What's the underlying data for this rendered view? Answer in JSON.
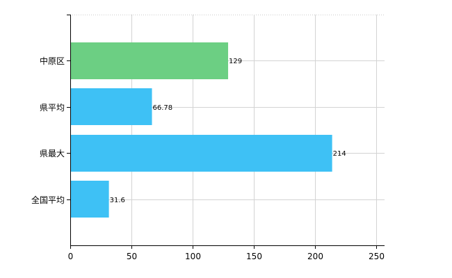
{
  "chart_data": {
    "type": "bar",
    "orientation": "horizontal",
    "categories": [
      "中原区",
      "県平均",
      "県最大",
      "全国平均"
    ],
    "values": [
      129,
      66.78,
      214,
      31.6
    ],
    "data_labels": [
      "129",
      "66.78",
      "214",
      "31.6"
    ],
    "bar_colors": [
      "#6ccf83",
      "#3ec1f5",
      "#3ec1f5",
      "#3ec1f5"
    ],
    "xlim": [
      0,
      250
    ],
    "x_ticks": [
      0,
      50,
      100,
      150,
      200,
      250
    ],
    "x_tick_labels": [
      "0",
      "50",
      "100",
      "150",
      "200",
      "250"
    ],
    "grid": true,
    "title": "",
    "xlabel": "",
    "ylabel": ""
  }
}
